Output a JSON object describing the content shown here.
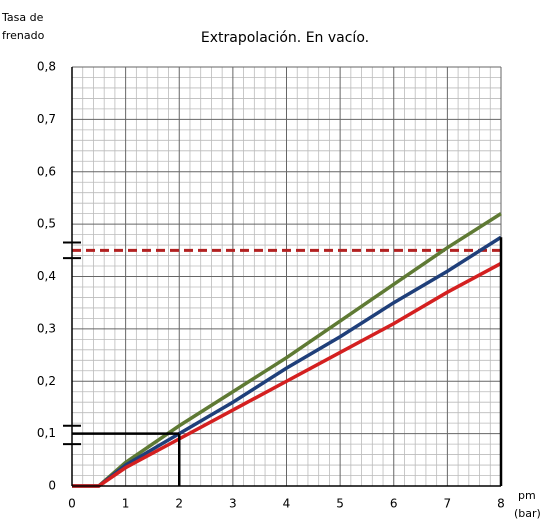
{
  "chart_data": {
    "type": "line",
    "title": "Extrapolación. En vacío.",
    "y_label": [
      "Tasa de",
      "frenado"
    ],
    "x_label": [
      "pm",
      "(bar)"
    ],
    "x": [
      0,
      0.5,
      1,
      2,
      3,
      4,
      5,
      6,
      7,
      8
    ],
    "series": [
      {
        "color": "#5f7a34",
        "values": [
          0,
          0,
          0.045,
          0.115,
          0.18,
          0.245,
          0.315,
          0.385,
          0.455,
          0.52
        ]
      },
      {
        "color": "#1f3f7a",
        "values": [
          0,
          0,
          0.04,
          0.1,
          0.16,
          0.225,
          0.285,
          0.35,
          0.41,
          0.475
        ]
      },
      {
        "color": "#d42020",
        "values": [
          0,
          0,
          0.035,
          0.09,
          0.145,
          0.2,
          0.255,
          0.31,
          0.37,
          0.425
        ]
      }
    ],
    "xlim": [
      0,
      8
    ],
    "xticks": [
      0,
      1,
      2,
      3,
      4,
      5,
      6,
      7,
      8
    ],
    "ylim": [
      0,
      0.8
    ],
    "yticks": [
      0,
      {
        "value": 0.1,
        "label": "0,1"
      },
      {
        "value": 0.2,
        "label": "0,2"
      },
      {
        "value": 0.3,
        "label": "0,3"
      },
      {
        "value": 0.4,
        "label": "0,4"
      },
      {
        "value": 0.5,
        "label": "0,5"
      },
      {
        "value": 0.6,
        "label": "0,6"
      },
      {
        "value": 0.7,
        "label": "0,7"
      },
      {
        "value": 0.8,
        "label": "0,8"
      }
    ],
    "grid": true,
    "minor_divisions": 5,
    "threshold": {
      "value": 0.45,
      "color": "#b22222"
    },
    "guides": [
      {
        "x": 2,
        "y": 0.1,
        "to_axis": true
      },
      {
        "x": 8,
        "y": 0.475,
        "to_axis": false
      }
    ],
    "tolerance_marks": [
      0.435,
      0.465,
      0.08,
      0.115
    ]
  }
}
